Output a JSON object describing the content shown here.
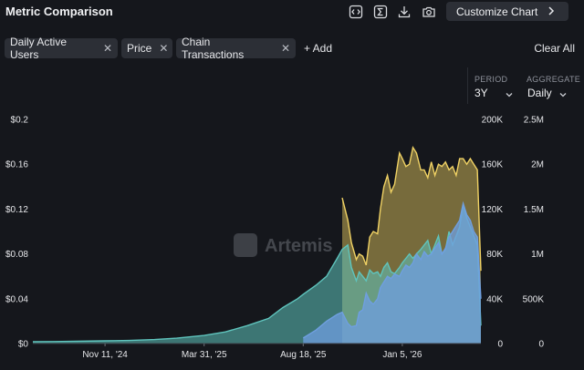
{
  "header": {
    "title": "Metric Comparison",
    "customize_label": "Customize Chart",
    "icons": [
      "embed-icon",
      "sigma-icon",
      "download-icon",
      "camera-icon"
    ]
  },
  "chips": [
    {
      "label": "Daily Active Users"
    },
    {
      "label": "Price"
    },
    {
      "label": "Chain Transactions"
    }
  ],
  "add_label": "+ Add",
  "clear_label": "Clear All",
  "controls": {
    "period_label": "PERIOD",
    "period_value": "3Y",
    "aggregate_label": "AGGREGATE",
    "aggregate_value": "Daily"
  },
  "watermark": "Artemis",
  "colors": {
    "price": "#f0d264",
    "daily_active_users": "#5fc4bd",
    "chain_transactions": "#6f9fe0"
  },
  "chart_data": {
    "type": "area",
    "x_ticks": [
      "Nov 11, '24",
      "Mar 31, '25",
      "Aug 18, '25",
      "Jan 5, '26"
    ],
    "y_axes": [
      {
        "ticks": [
          "$0",
          "$0.04",
          "$0.08",
          "$0.12",
          "$0.16",
          "$0.2"
        ],
        "ylim": [
          0,
          0.2
        ]
      },
      {
        "ticks": [
          "0",
          "40K",
          "80K",
          "120K",
          "160K",
          "200K"
        ],
        "ylim": [
          0,
          200000
        ]
      },
      {
        "ticks": [
          "0",
          "500K",
          "1M",
          "1.5M",
          "2M",
          "2.5M"
        ],
        "ylim": [
          0,
          2500000
        ]
      }
    ],
    "x": [
      "2024-08-01",
      "2024-09-01",
      "2024-10-01",
      "2024-11-11",
      "2024-12-15",
      "2025-01-20",
      "2025-02-20",
      "2025-03-31",
      "2025-04-30",
      "2025-05-31",
      "2025-06-30",
      "2025-07-20",
      "2025-08-10",
      "2025-08-18",
      "2025-09-05",
      "2025-09-20",
      "2025-10-05",
      "2025-10-12",
      "2025-10-20",
      "2025-10-25",
      "2025-11-01",
      "2025-11-05",
      "2025-11-10",
      "2025-11-15",
      "2025-11-20",
      "2025-11-25",
      "2025-12-01",
      "2025-12-05",
      "2025-12-10",
      "2025-12-15",
      "2025-12-20",
      "2025-12-25",
      "2026-01-01",
      "2026-01-05",
      "2026-01-10",
      "2026-01-15",
      "2026-01-20",
      "2026-01-25",
      "2026-01-31",
      "2026-02-05",
      "2026-02-10",
      "2026-02-15",
      "2026-02-20",
      "2026-02-25",
      "2026-03-02",
      "2026-03-07",
      "2026-03-12",
      "2026-03-17",
      "2026-03-22",
      "2026-03-27",
      "2026-04-01",
      "2026-04-06",
      "2026-04-11",
      "2026-04-16",
      "2026-04-21",
      "2026-04-26"
    ],
    "series": [
      {
        "name": "Price",
        "axis": 0,
        "start": "2025-10-12",
        "values": [
          null,
          null,
          null,
          null,
          null,
          null,
          null,
          null,
          null,
          null,
          null,
          null,
          null,
          null,
          null,
          null,
          null,
          0.13,
          0.11,
          0.09,
          0.075,
          0.08,
          0.078,
          0.07,
          0.095,
          0.1,
          0.098,
          0.12,
          0.14,
          0.15,
          0.135,
          0.142,
          0.17,
          0.165,
          0.158,
          0.16,
          0.175,
          0.17,
          0.155,
          0.155,
          0.148,
          0.162,
          0.15,
          0.16,
          0.158,
          0.162,
          0.155,
          0.158,
          0.15,
          0.165,
          0.165,
          0.16,
          0.165,
          0.16,
          0.155,
          0.065
        ]
      },
      {
        "name": "Daily Active Users",
        "axis": 2,
        "values": [
          20000,
          22000,
          25000,
          30000,
          35000,
          45000,
          60000,
          90000,
          130000,
          200000,
          280000,
          400000,
          500000,
          550000,
          650000,
          750000,
          950000,
          1050000,
          1100000,
          850000,
          700000,
          800000,
          750000,
          700000,
          820000,
          780000,
          800000,
          750000,
          850000,
          900000,
          800000,
          780000,
          850000,
          900000,
          950000,
          1000000,
          950000,
          1000000,
          1050000,
          1100000,
          1150000,
          1000000,
          1100000,
          1200000,
          1000000,
          1050000,
          1250000,
          1100000,
          1200000,
          1300000,
          1550000,
          1400000,
          1300000,
          1200000,
          1100000,
          200000
        ]
      },
      {
        "name": "Chain Transactions",
        "axis": 1,
        "start": "2025-08-18",
        "values": [
          null,
          null,
          null,
          null,
          null,
          null,
          null,
          null,
          null,
          null,
          null,
          null,
          null,
          5000,
          12000,
          20000,
          26000,
          28000,
          18000,
          15000,
          16000,
          28000,
          30000,
          45000,
          38000,
          35000,
          40000,
          50000,
          55000,
          60000,
          58000,
          62000,
          60000,
          65000,
          70000,
          68000,
          72000,
          80000,
          75000,
          82000,
          78000,
          80000,
          85000,
          90000,
          80000,
          85000,
          95000,
          100000,
          105000,
          110000,
          125000,
          115000,
          110000,
          100000,
          95000,
          40000
        ]
      }
    ],
    "grid": false,
    "legend": "none"
  }
}
